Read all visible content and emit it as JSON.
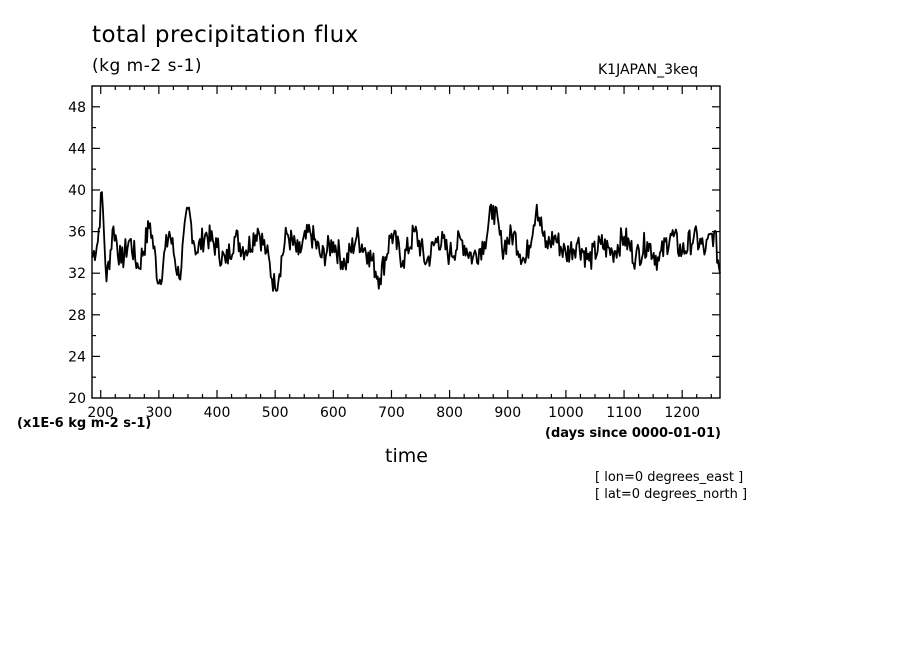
{
  "chart_data": {
    "type": "line",
    "title": "total precipitation flux",
    "units": "(kg m-2 s-1)",
    "run_id": "K1JAPAN_3keq",
    "xlabel": "time",
    "x_units": "(days since 0000-01-01)",
    "scale_note": "(x1E-6 kg m-2 s-1)",
    "notes": [
      "[ lon=0 degrees_east ]",
      "[ lat=0 degrees_north ]"
    ],
    "xlim": [
      185,
      1265
    ],
    "ylim": [
      20,
      50
    ],
    "x_ticks": [
      200,
      300,
      400,
      500,
      600,
      700,
      800,
      900,
      1000,
      1100,
      1200
    ],
    "y_ticks": [
      20,
      24,
      28,
      32,
      36,
      40,
      44,
      48
    ],
    "grid": false,
    "line_color": "#000000",
    "series": [
      {
        "x": [
          185,
          195,
          202,
          210,
          222,
          235,
          250,
          265,
          285,
          300,
          318,
          335,
          350,
          365,
          380,
          400,
          415,
          430,
          450,
          470,
          485,
          500,
          520,
          540,
          560,
          580,
          600,
          620,
          640,
          660,
          680,
          700,
          720,
          740,
          760,
          780,
          800,
          820,
          840,
          860,
          875,
          890,
          910,
          930,
          950,
          965,
          980,
          1000,
          1020,
          1040,
          1060,
          1080,
          1100,
          1120,
          1140,
          1160,
          1180,
          1200,
          1220,
          1240,
          1255,
          1265
        ],
        "y": [
          33.5,
          35.0,
          40.0,
          31.2,
          36.5,
          33.0,
          35.2,
          32.5,
          36.8,
          31.0,
          36.0,
          31.5,
          38.2,
          34.0,
          35.8,
          34.5,
          33.0,
          35.5,
          34.2,
          36.3,
          34.0,
          30.5,
          35.8,
          33.8,
          36.0,
          33.5,
          35.0,
          32.8,
          35.5,
          34.0,
          31.5,
          35.8,
          33.2,
          36.0,
          33.0,
          35.5,
          33.8,
          35.2,
          33.5,
          35.0,
          38.5,
          34.5,
          35.8,
          33.0,
          38.6,
          34.5,
          35.5,
          33.8,
          35.0,
          33.2,
          34.8,
          34.0,
          35.5,
          33.5,
          35.0,
          33.2,
          35.8,
          34.0,
          35.5,
          34.2,
          36.0,
          32.0
        ]
      }
    ]
  }
}
